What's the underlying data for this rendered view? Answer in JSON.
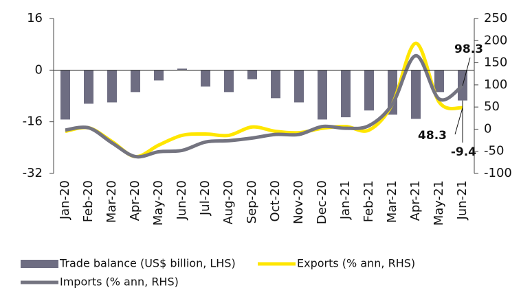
{
  "chart_data": {
    "type": "bar",
    "categories": [
      "Jan-20",
      "Feb-20",
      "Mar-20",
      "Apr-20",
      "May-20",
      "Jun-20",
      "Jul-20",
      "Aug-20",
      "Sep-20",
      "Oct-20",
      "Nov-20",
      "Dec-20",
      "Jan-21",
      "Feb-21",
      "Mar-21",
      "Apr-21",
      "May-21",
      "Jun-21"
    ],
    "series": [
      {
        "name": "Trade balance (US$ billion, LHS)",
        "type": "bar",
        "color": "#6e6d82",
        "values": [
          -15.3,
          -10.4,
          -10,
          -6.8,
          -3.2,
          0.5,
          -5.1,
          -6.8,
          -2.8,
          -8.7,
          -10,
          -15.3,
          -14.6,
          -12.5,
          -13.8,
          -15.1,
          -6.8,
          -9.4
        ]
      },
      {
        "name": "Exports (% ann, RHS)",
        "type": "line",
        "axis": "y2",
        "color": "#ffe600",
        "values": [
          -5,
          3,
          -28,
          -62,
          -36,
          -14,
          -11,
          -14,
          5,
          -5,
          -8,
          2,
          6,
          -2,
          57,
          194,
          61,
          48.3
        ]
      },
      {
        "name": "Imports (% ann, RHS)",
        "type": "line",
        "axis": "y2",
        "color": "#747480",
        "values": [
          -2,
          3,
          -31,
          -62,
          -51,
          -48,
          -29,
          -26,
          -20,
          -12,
          -12,
          6,
          2,
          8,
          57,
          166,
          68,
          98.3
        ]
      }
    ],
    "ylim": [
      -32,
      16
    ],
    "yticks": [
      -32,
      -16,
      0,
      16
    ],
    "y2lim": [
      -100,
      250
    ],
    "y2ticks": [
      -100,
      -50,
      0,
      50,
      100,
      150,
      200,
      250
    ]
  }
}
